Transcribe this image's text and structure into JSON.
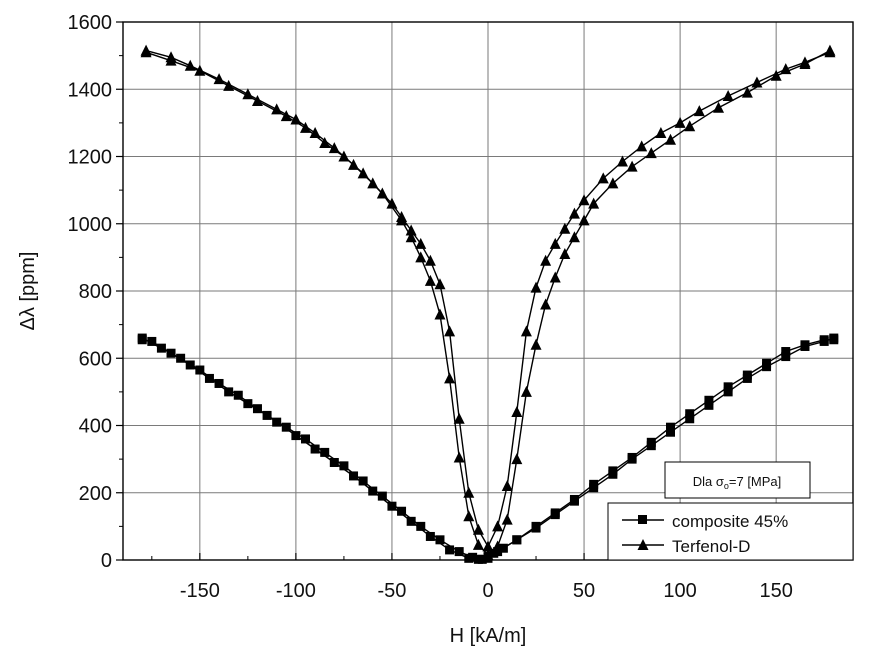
{
  "chart_data": {
    "type": "line",
    "xlabel": "H [kA/m]",
    "ylabel": "Δλ [ppm]",
    "xlim": [
      -190,
      190
    ],
    "ylim": [
      0,
      1600
    ],
    "xticks": [
      -150,
      -100,
      -50,
      0,
      50,
      100,
      150
    ],
    "yticks": [
      0,
      200,
      400,
      600,
      800,
      1000,
      1200,
      1400,
      1600
    ],
    "grid": true,
    "legend_position": "bottom-right",
    "annotation": {
      "prefix": "Dla σ",
      "sub": "o",
      "suffix": "=7 [MPa]"
    },
    "series": [
      {
        "name": "composite 45%",
        "marker": "square",
        "branches": [
          {
            "x": [
              -180,
              -175,
              -165,
              -155,
              -145,
              -135,
              -125,
              -115,
              -105,
              -95,
              -85,
              -75,
              -65,
              -55,
              -45,
              -35,
              -25,
              -15,
              -8,
              -3,
              0,
              5,
              15,
              25,
              35,
              45,
              55,
              65,
              75,
              85,
              95,
              105,
              115,
              125,
              135,
              145,
              155,
              165,
              175,
              180
            ],
            "y": [
              655,
              650,
              615,
              580,
              540,
              500,
              465,
              430,
              395,
              360,
              320,
              280,
              235,
              190,
              145,
              100,
              60,
              25,
              8,
              2,
              5,
              25,
              60,
              100,
              140,
              180,
              225,
              265,
              305,
              350,
              395,
              435,
              475,
              515,
              550,
              585,
              620,
              640,
              655,
              655
            ]
          },
          {
            "x": [
              -180,
              -170,
              -160,
              -150,
              -140,
              -130,
              -120,
              -110,
              -100,
              -90,
              -80,
              -70,
              -60,
              -50,
              -40,
              -30,
              -20,
              -10,
              -5,
              0,
              3,
              8,
              15,
              25,
              35,
              45,
              55,
              65,
              75,
              85,
              95,
              105,
              115,
              125,
              135,
              145,
              155,
              165,
              175,
              180
            ],
            "y": [
              660,
              630,
              600,
              565,
              525,
              490,
              450,
              410,
              370,
              330,
              290,
              250,
              205,
              160,
              115,
              70,
              30,
              5,
              2,
              10,
              20,
              35,
              60,
              95,
              135,
              175,
              215,
              255,
              300,
              340,
              380,
              420,
              460,
              500,
              540,
              575,
              605,
              635,
              650,
              660
            ]
          }
        ]
      },
      {
        "name": "Terfenol-D",
        "marker": "triangle",
        "branches": [
          {
            "x": [
              -178,
              -165,
              -155,
              -140,
              -125,
              -110,
              -100,
              -90,
              -80,
              -70,
              -60,
              -50,
              -45,
              -40,
              -35,
              -30,
              -25,
              -20,
              -15,
              -10,
              -5,
              0,
              5,
              10,
              15,
              20,
              25,
              30,
              35,
              40,
              45,
              50,
              60,
              70,
              80,
              90,
              100,
              110,
              125,
              140,
              155,
              165,
              178
            ],
            "y": [
              1515,
              1495,
              1470,
              1430,
              1385,
              1340,
              1310,
              1270,
              1225,
              1175,
              1120,
              1060,
              1020,
              980,
              940,
              890,
              820,
              680,
              420,
              200,
              90,
              40,
              100,
              220,
              440,
              680,
              810,
              890,
              940,
              985,
              1030,
              1070,
              1135,
              1185,
              1230,
              1270,
              1300,
              1335,
              1380,
              1420,
              1460,
              1480,
              1510
            ]
          },
          {
            "x": [
              -178,
              -165,
              -150,
              -135,
              -120,
              -105,
              -95,
              -85,
              -75,
              -65,
              -55,
              -45,
              -40,
              -35,
              -30,
              -25,
              -20,
              -15,
              -10,
              -5,
              0,
              5,
              10,
              15,
              20,
              25,
              30,
              35,
              40,
              45,
              50,
              55,
              65,
              75,
              85,
              95,
              105,
              120,
              135,
              150,
              165,
              178
            ],
            "y": [
              1510,
              1485,
              1455,
              1410,
              1365,
              1320,
              1285,
              1240,
              1200,
              1150,
              1090,
              1010,
              960,
              900,
              830,
              730,
              540,
              305,
              130,
              45,
              15,
              40,
              120,
              300,
              500,
              640,
              760,
              840,
              910,
              960,
              1010,
              1060,
              1120,
              1170,
              1210,
              1250,
              1290,
              1345,
              1390,
              1440,
              1475,
              1515
            ]
          }
        ]
      }
    ]
  }
}
